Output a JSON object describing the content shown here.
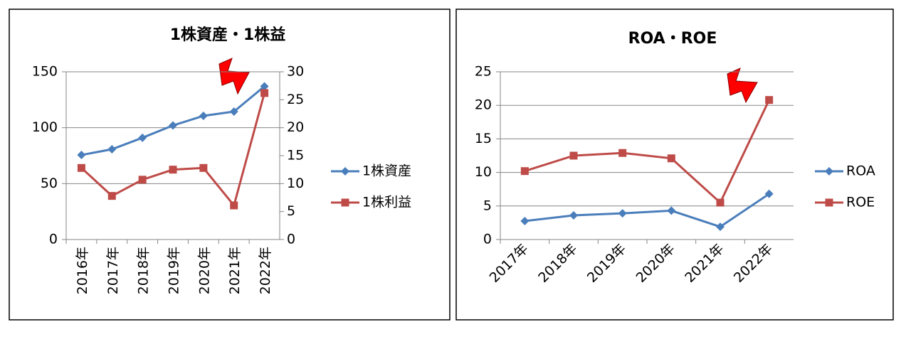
{
  "chart_data": [
    {
      "type": "line",
      "title": "1株資産・1株益",
      "categories": [
        "2016年",
        "2017年",
        "2018年",
        "2019年",
        "2020年",
        "2021年",
        "2022年"
      ],
      "series": [
        {
          "name": "1株資産",
          "color": "#4a7ebb",
          "marker": "diamond",
          "values": [
            75.6,
            80.7,
            91,
            102,
            110.6,
            114.4,
            137
          ]
        },
        {
          "name": "1株利益",
          "color": "#be4b48",
          "marker": "square",
          "axis": "y2",
          "values": [
            12.8,
            7.8,
            10.7,
            12.5,
            12.8,
            6.1,
            26.2
          ]
        }
      ],
      "ylim": [
        0,
        150
      ],
      "yticks": [
        0,
        50,
        100,
        150
      ],
      "y2lim": [
        0,
        30
      ],
      "y2ticks": [
        0,
        5,
        10,
        15,
        20,
        25,
        30
      ],
      "grid": true,
      "legend": "right",
      "xlabel_rotation": -90
    },
    {
      "type": "line",
      "title": "ROA・ROE",
      "categories": [
        "2017年",
        "2018年",
        "2019年",
        "2020年",
        "2021年",
        "2022年"
      ],
      "series": [
        {
          "name": "ROA",
          "color": "#4a7ebb",
          "marker": "diamond",
          "values": [
            2.75,
            3.6,
            3.9,
            4.3,
            1.9,
            6.8
          ]
        },
        {
          "name": "ROE",
          "color": "#be4b48",
          "marker": "square",
          "values": [
            10.2,
            12.5,
            12.9,
            12.1,
            5.5,
            20.8
          ]
        }
      ],
      "ylim": [
        0,
        25
      ],
      "yticks": [
        0,
        5,
        10,
        15,
        20,
        25
      ],
      "grid": true,
      "legend": "right",
      "xlabel_rotation": -45
    }
  ]
}
